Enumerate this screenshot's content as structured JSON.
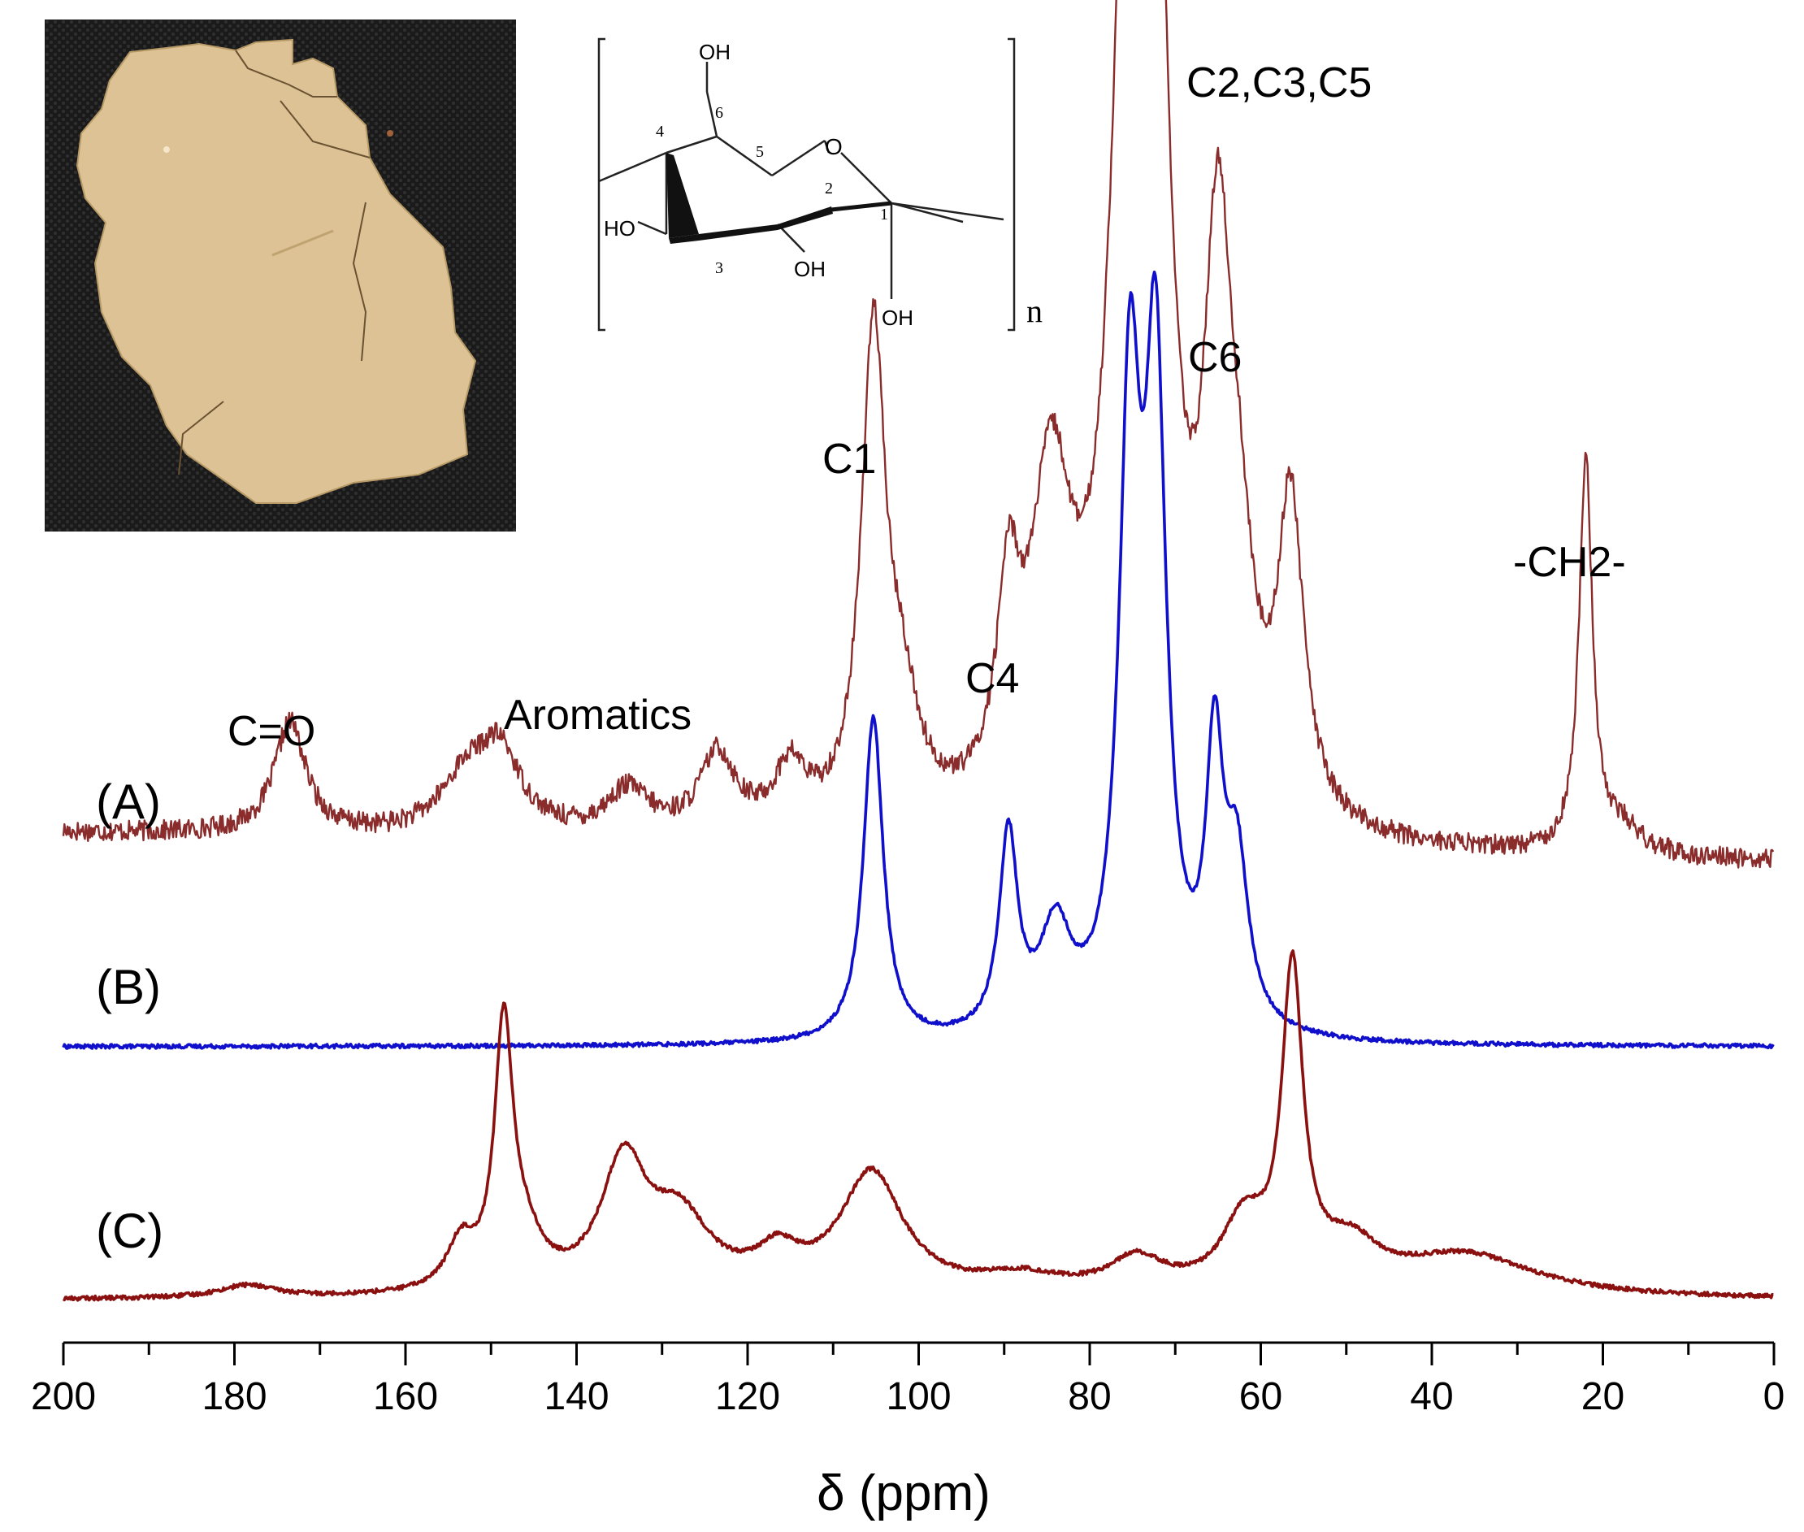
{
  "chart_data": {
    "type": "line",
    "xlabel": "δ (ppm)",
    "xlim": [
      200,
      0
    ],
    "x_reversed": true,
    "xticks_major": [
      200,
      180,
      160,
      140,
      120,
      100,
      80,
      60,
      40,
      20,
      0
    ],
    "xtick_labels": [
      "200",
      "180",
      "160",
      "140",
      "120",
      "100",
      "80",
      "60",
      "40",
      "20",
      "0"
    ],
    "xticks_minor_step": 10,
    "ylabel": "",
    "yaxis_visible": false,
    "legend": "none",
    "grid": false,
    "series": [
      {
        "name": "(A)",
        "color": "#8b2c2c",
        "baseline": 0.06,
        "noise": 0.012,
        "peaks": [
          {
            "ppm": 173.5,
            "height": 0.13,
            "width": 2.2
          },
          {
            "ppm": 153.0,
            "height": 0.06,
            "width": 3.5
          },
          {
            "ppm": 149.0,
            "height": 0.09,
            "width": 3.0
          },
          {
            "ppm": 134.0,
            "height": 0.05,
            "width": 3.0
          },
          {
            "ppm": 123.5,
            "height": 0.09,
            "width": 2.5
          },
          {
            "ppm": 115.0,
            "height": 0.07,
            "width": 2.2
          },
          {
            "ppm": 105.3,
            "height": 0.56,
            "width": 1.7
          },
          {
            "ppm": 102.0,
            "height": 0.12,
            "width": 2.5
          },
          {
            "ppm": 89.5,
            "height": 0.22,
            "width": 1.6
          },
          {
            "ppm": 84.5,
            "height": 0.37,
            "width": 3.0
          },
          {
            "ppm": 75.5,
            "height": 0.98,
            "width": 2.4
          },
          {
            "ppm": 72.5,
            "height": 1.02,
            "width": 2.0
          },
          {
            "ppm": 65.0,
            "height": 0.6,
            "width": 2.0
          },
          {
            "ppm": 62.5,
            "height": 0.18,
            "width": 2.0
          },
          {
            "ppm": 56.5,
            "height": 0.36,
            "width": 1.8
          },
          {
            "ppm": 22.0,
            "height": 0.45,
            "width": 0.95
          },
          {
            "ppm": 18.0,
            "height": 0.03,
            "width": 3.0
          }
        ]
      },
      {
        "name": "(B)",
        "color": "#1010cc",
        "baseline": 0.0,
        "noise": 0.004,
        "peaks": [
          {
            "ppm": 105.3,
            "height": 0.64,
            "width": 1.4
          },
          {
            "ppm": 89.5,
            "height": 0.39,
            "width": 1.3
          },
          {
            "ppm": 84.0,
            "height": 0.2,
            "width": 2.2
          },
          {
            "ppm": 75.3,
            "height": 1.2,
            "width": 1.5
          },
          {
            "ppm": 72.3,
            "height": 1.25,
            "width": 1.5
          },
          {
            "ppm": 65.4,
            "height": 0.52,
            "width": 1.2
          },
          {
            "ppm": 62.8,
            "height": 0.32,
            "width": 1.6
          }
        ]
      },
      {
        "name": "(C)",
        "color": "#8b1111",
        "baseline": 0.0,
        "noise": 0.005,
        "peaks": [
          {
            "ppm": 178.5,
            "height": 0.03,
            "width": 4.0
          },
          {
            "ppm": 153.5,
            "height": 0.11,
            "width": 2.0
          },
          {
            "ppm": 148.5,
            "height": 0.62,
            "width": 1.3
          },
          {
            "ppm": 146.0,
            "height": 0.1,
            "width": 2.5
          },
          {
            "ppm": 134.5,
            "height": 0.3,
            "width": 3.2
          },
          {
            "ppm": 128.0,
            "height": 0.17,
            "width": 4.5
          },
          {
            "ppm": 116.5,
            "height": 0.08,
            "width": 3.0
          },
          {
            "ppm": 105.5,
            "height": 0.29,
            "width": 4.5
          },
          {
            "ppm": 88.0,
            "height": 0.04,
            "width": 6.0
          },
          {
            "ppm": 74.5,
            "height": 0.08,
            "width": 4.0
          },
          {
            "ppm": 62.0,
            "height": 0.16,
            "width": 3.0
          },
          {
            "ppm": 56.3,
            "height": 0.75,
            "width": 1.5
          },
          {
            "ppm": 49.5,
            "height": 0.1,
            "width": 4.0
          },
          {
            "ppm": 36.0,
            "height": 0.1,
            "width": 10.0
          }
        ]
      }
    ],
    "annotations": [
      "C=O",
      "Aromatics",
      "C1",
      "C4",
      "C2,C3,C5",
      "C6",
      "-CH2-"
    ]
  },
  "labels": {
    "trace_a": "(A)",
    "trace_b": "(B)",
    "trace_c": "(C)",
    "co": "C=O",
    "aromatics": "Aromatics",
    "c1": "C1",
    "c4": "C4",
    "c235": "C2,C3,C5",
    "c6": "C6",
    "ch2": "-CH2-"
  },
  "molecule": {
    "oh_top": "OH",
    "oh_c2": "OH",
    "oh_c1": "OH",
    "ho_c3": "HO",
    "ring_o": "O",
    "n": "n",
    "c1": "1",
    "c2": "2",
    "c3": "3",
    "c4": "4",
    "c5": "5",
    "c6": "6"
  },
  "colors": {
    "trace_a": "#8b2c2c",
    "trace_b": "#1010cc",
    "trace_c": "#8b1111",
    "photo_bg": "#1a1a1a",
    "sample_fill": "#dcc294"
  }
}
